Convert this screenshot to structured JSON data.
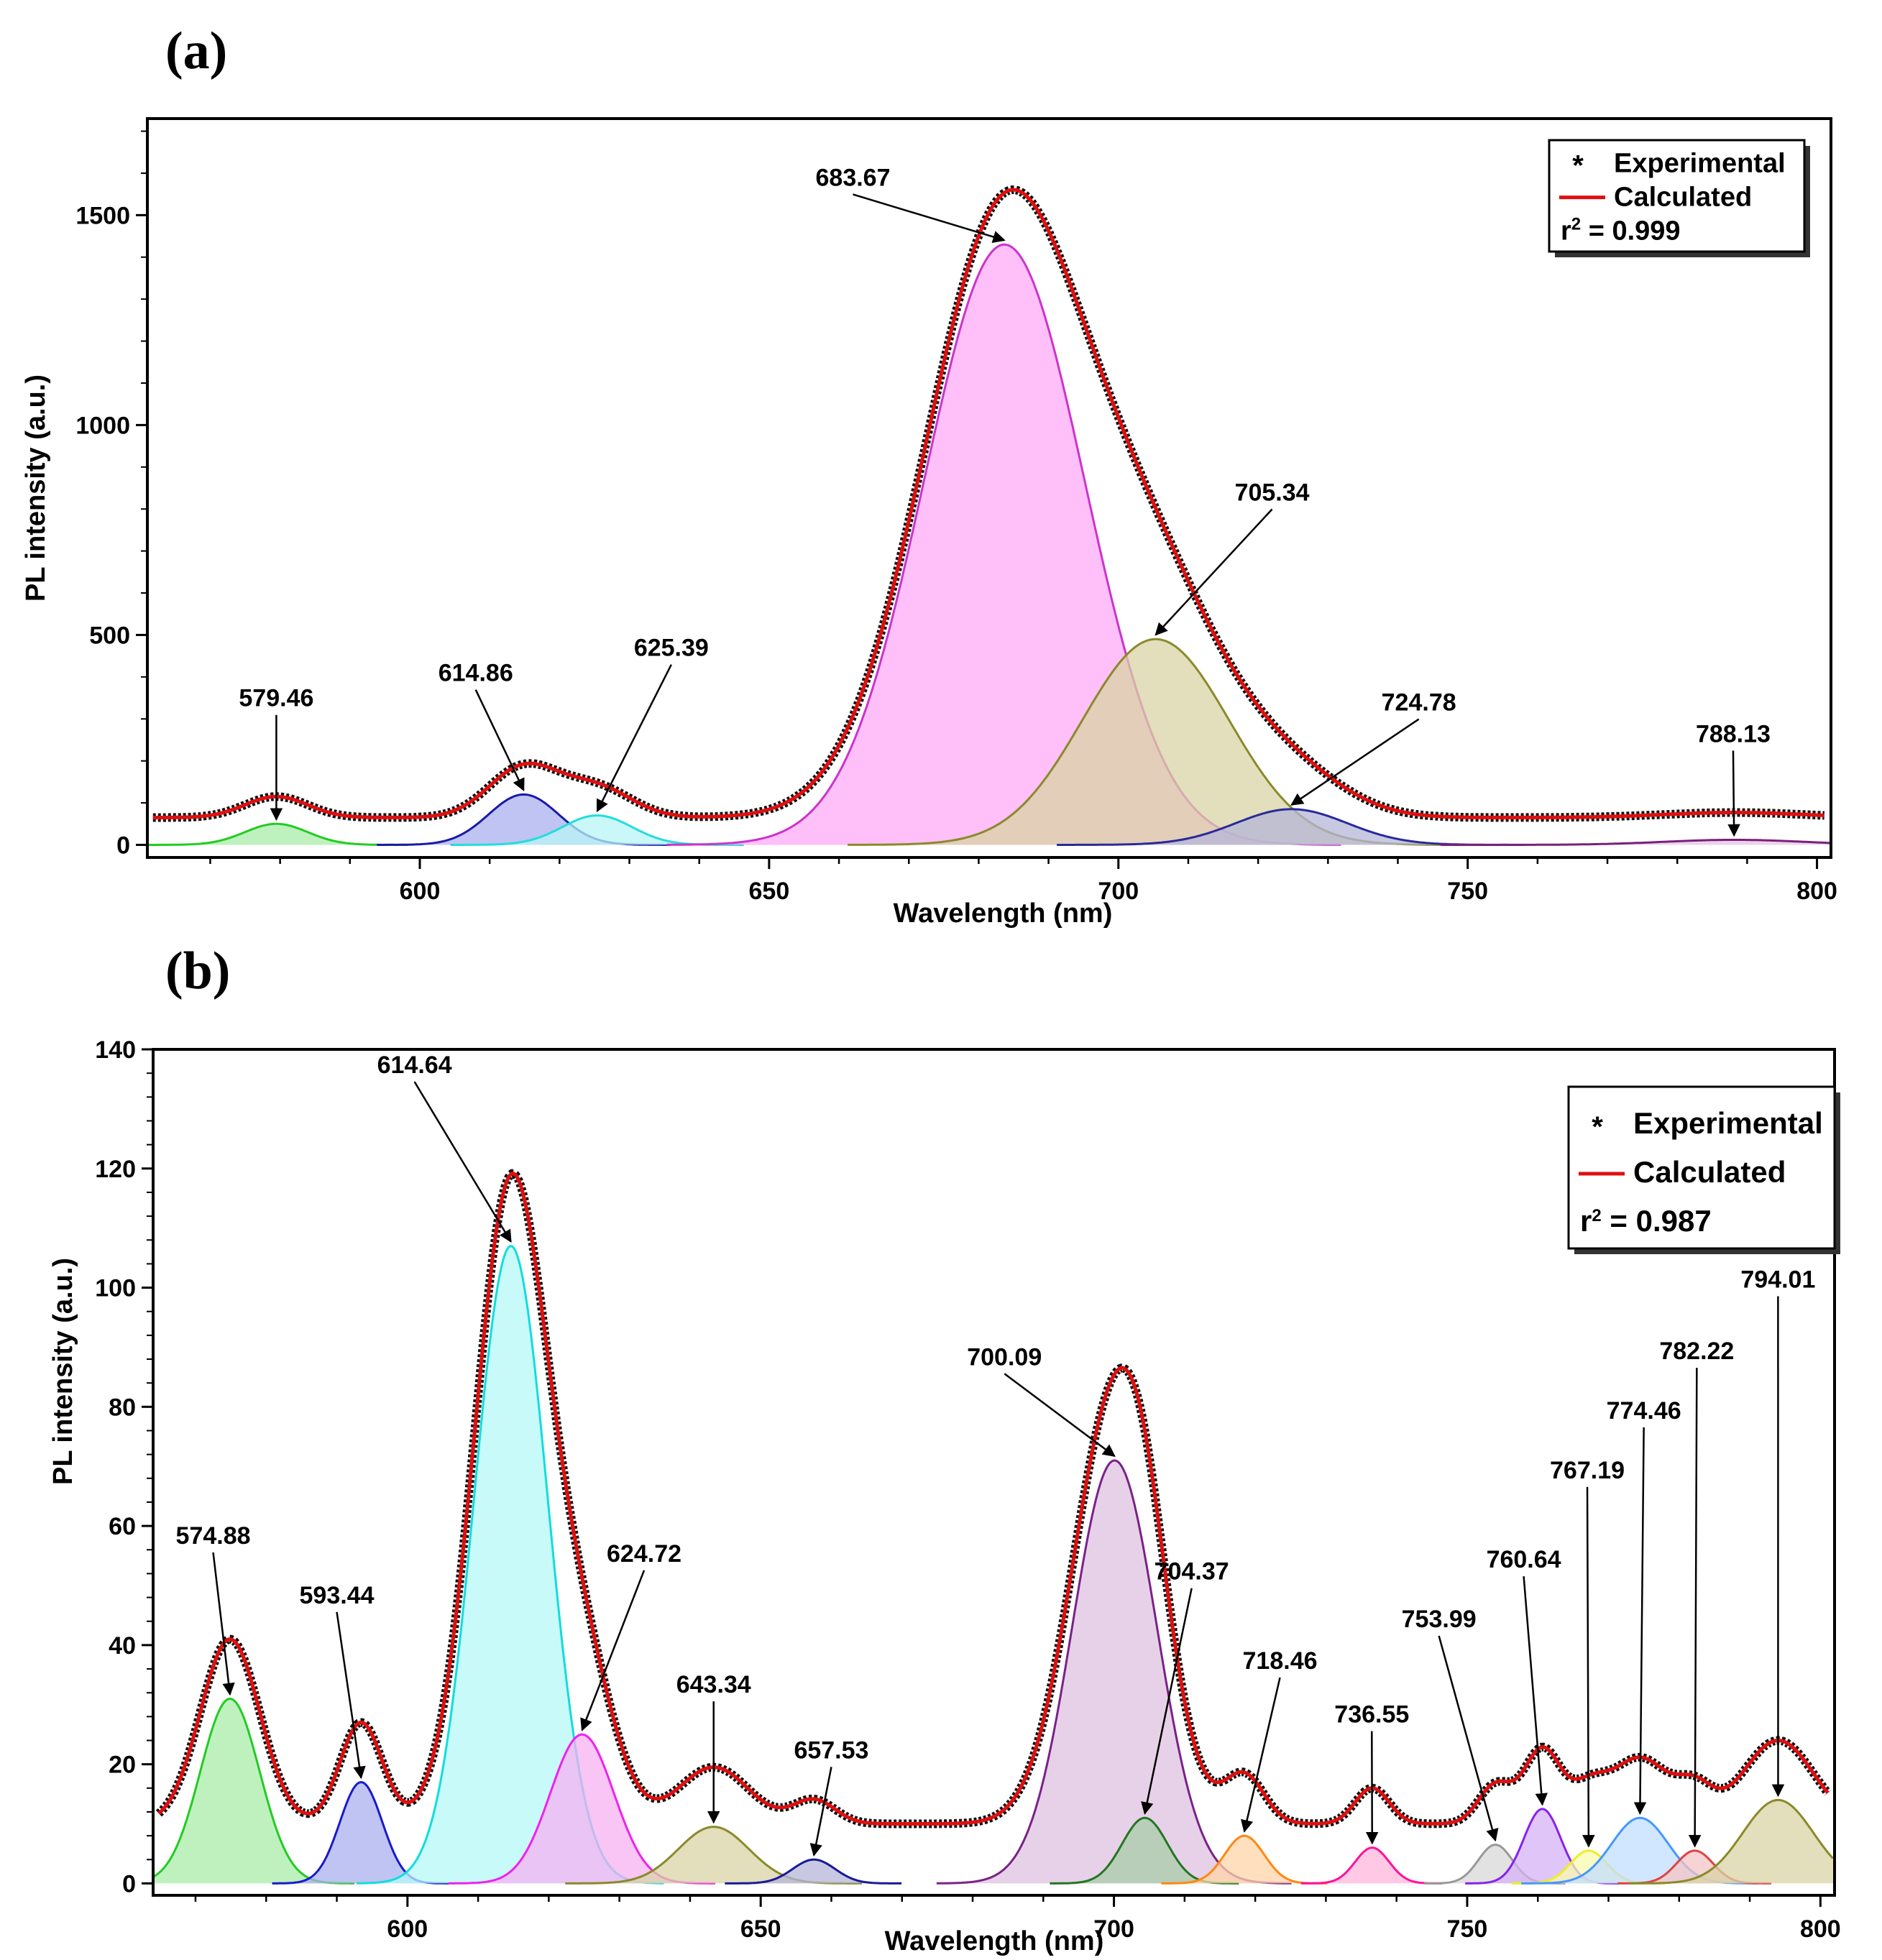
{
  "chart_data": [
    {
      "panel": "(a)",
      "type": "line",
      "xlabel": "Wavelength (nm)",
      "ylabel": "PL intensity (a.u.)",
      "xlim": [
        561,
        802
      ],
      "ylim": [
        -30,
        1730
      ],
      "xticks": [
        600,
        650,
        700,
        750,
        800
      ],
      "yticks": [
        0,
        500,
        1000,
        1500
      ],
      "legend": {
        "position": "top-right",
        "experimental": "Experimental",
        "calculated": "Calculated",
        "r2_prefix": "r",
        "r2_sup": "2",
        "r2_value": " = 0.999"
      },
      "calc_offset": 65,
      "components": [
        {
          "center": 579.46,
          "amp": 50,
          "sigma": 4.5,
          "color": "#22cc22",
          "fill": "#a8eca8",
          "label": "579.46"
        },
        {
          "center": 614.86,
          "amp": 120,
          "sigma": 5.0,
          "color": "#1a1aaa",
          "fill": "#aab0ee",
          "label": "614.86"
        },
        {
          "center": 625.39,
          "amp": 70,
          "sigma": 5.0,
          "color": "#22dddd",
          "fill": "#b8f4f4",
          "label": "625.39"
        },
        {
          "center": 683.67,
          "amp": 1430,
          "sigma": 11.5,
          "color": "#cc33cc",
          "fill": "#ffaaf5",
          "label": "683.67"
        },
        {
          "center": 705.34,
          "amp": 490,
          "sigma": 10.5,
          "color": "#8a8a2a",
          "fill": "#d9d3a6",
          "label": "705.34"
        },
        {
          "center": 724.78,
          "amp": 85,
          "sigma": 8.0,
          "color": "#2a2a9a",
          "fill": "#b6b6d8",
          "label": "724.78"
        },
        {
          "center": 788.13,
          "amp": 12,
          "sigma": 10.0,
          "color": "#7a207a",
          "fill": "#e4c6e4",
          "label": "788.13"
        }
      ],
      "annotations": [
        {
          "text": "579.46",
          "peak_x": 579.46,
          "label_x": 579.46,
          "label_y": 330
        },
        {
          "text": "614.86",
          "peak_x": 614.86,
          "label_x": 608,
          "label_y": 390
        },
        {
          "text": "625.39",
          "peak_x": 625.39,
          "label_x": 636,
          "label_y": 450
        },
        {
          "text": "683.67",
          "peak_x": 683.67,
          "label_x": 662,
          "label_y": 1570
        },
        {
          "text": "705.34",
          "peak_x": 705.34,
          "label_x": 722,
          "label_y": 820
        },
        {
          "text": "724.78",
          "peak_x": 724.78,
          "label_x": 743,
          "label_y": 320
        },
        {
          "text": "788.13",
          "peak_x": 788.13,
          "label_x": 788,
          "label_y": 245
        }
      ]
    },
    {
      "panel": "(b)",
      "type": "line",
      "xlabel": "Wavelength (nm)",
      "ylabel": "PL intensity (a.u.)",
      "xlim": [
        564,
        802
      ],
      "ylim": [
        -2,
        140
      ],
      "xticks": [
        600,
        650,
        700,
        750,
        800
      ],
      "yticks": [
        0,
        20,
        40,
        60,
        80,
        100,
        120,
        140
      ],
      "legend": {
        "position": "top-right",
        "experimental": "Experimental",
        "calculated": "Calculated",
        "r2_prefix": "r",
        "r2_sup": "2",
        "r2_value": " = 0.987"
      },
      "calc_offset": 10,
      "components": [
        {
          "center": 574.88,
          "amp": 31,
          "sigma": 4.2,
          "color": "#22cc22",
          "fill": "#a8eca8",
          "label": "574.88"
        },
        {
          "center": 593.44,
          "amp": 17,
          "sigma": 3.0,
          "color": "#1a1acc",
          "fill": "#aab0ee",
          "label": "593.44"
        },
        {
          "center": 614.64,
          "amp": 107,
          "sigma": 5.2,
          "color": "#11dddd",
          "fill": "#b5f8f8",
          "label": "614.64"
        },
        {
          "center": 624.72,
          "amp": 25,
          "sigma": 4.5,
          "color": "#ee22ee",
          "fill": "#f5b2f2",
          "label": "624.72"
        },
        {
          "center": 643.34,
          "amp": 9.5,
          "sigma": 5.0,
          "color": "#8a8a2a",
          "fill": "#d9d3a6",
          "label": "643.34"
        },
        {
          "center": 657.53,
          "amp": 4,
          "sigma": 3.0,
          "color": "#1a1a99",
          "fill": "#b6b6d8",
          "label": "657.53"
        },
        {
          "center": 700.09,
          "amp": 71,
          "sigma": 6.0,
          "color": "#7a2288",
          "fill": "#dfc2e0",
          "label": "700.09"
        },
        {
          "center": 704.37,
          "amp": 11,
          "sigma": 3.2,
          "color": "#227722",
          "fill": "#a8cca8",
          "label": "704.37"
        },
        {
          "center": 718.46,
          "amp": 8,
          "sigma": 2.8,
          "color": "#ff8811",
          "fill": "#ffd4a8",
          "label": "718.46"
        },
        {
          "center": 736.55,
          "amp": 6,
          "sigma": 2.4,
          "color": "#ff1199",
          "fill": "#ffb6dc",
          "label": "736.55"
        },
        {
          "center": 753.99,
          "amp": 6.5,
          "sigma": 2.4,
          "color": "#999999",
          "fill": "#d8d8d8",
          "label": "753.99"
        },
        {
          "center": 760.64,
          "amp": 12.5,
          "sigma": 2.6,
          "color": "#8822ee",
          "fill": "#d6b2f6",
          "label": "760.64"
        },
        {
          "center": 767.19,
          "amp": 5.5,
          "sigma": 2.6,
          "color": "#eeee22",
          "fill": "#fafab0",
          "label": "767.19"
        },
        {
          "center": 774.46,
          "amp": 11,
          "sigma": 4.0,
          "color": "#4499ff",
          "fill": "#c2ddff",
          "label": "774.46"
        },
        {
          "center": 782.22,
          "amp": 5.5,
          "sigma": 2.6,
          "color": "#dd4444",
          "fill": "#f4c4c4",
          "label": "782.22"
        },
        {
          "center": 794.01,
          "amp": 14,
          "sigma": 5.0,
          "color": "#8a8a2a",
          "fill": "#d9d3a6",
          "label": "794.01"
        }
      ],
      "annotations": [
        {
          "text": "574.88",
          "peak_x": 574.88,
          "label_x": 572.5,
          "label_y": 57
        },
        {
          "text": "593.44",
          "peak_x": 593.44,
          "label_x": 590,
          "label_y": 47
        },
        {
          "text": "614.64",
          "peak_x": 614.64,
          "label_x": 601,
          "label_y": 136
        },
        {
          "text": "624.72",
          "peak_x": 624.72,
          "label_x": 633.5,
          "label_y": 54
        },
        {
          "text": "643.34",
          "peak_x": 643.34,
          "label_x": 643.34,
          "label_y": 32
        },
        {
          "text": "657.53",
          "peak_x": 657.53,
          "label_x": 660,
          "label_y": 21
        },
        {
          "text": "700.09",
          "peak_x": 700.09,
          "label_x": 684.5,
          "label_y": 87
        },
        {
          "text": "704.37",
          "peak_x": 704.37,
          "label_x": 711,
          "label_y": 51
        },
        {
          "text": "718.46",
          "peak_x": 718.46,
          "label_x": 723.5,
          "label_y": 36
        },
        {
          "text": "736.55",
          "peak_x": 736.55,
          "label_x": 736.5,
          "label_y": 27
        },
        {
          "text": "753.99",
          "peak_x": 753.99,
          "label_x": 746,
          "label_y": 43
        },
        {
          "text": "760.64",
          "peak_x": 760.64,
          "label_x": 758,
          "label_y": 53
        },
        {
          "text": "767.19",
          "peak_x": 767.19,
          "label_x": 767,
          "label_y": 68
        },
        {
          "text": "774.46",
          "peak_x": 774.46,
          "label_x": 775,
          "label_y": 78
        },
        {
          "text": "782.22",
          "peak_x": 782.22,
          "label_x": 782.5,
          "label_y": 88
        },
        {
          "text": "794.01",
          "peak_x": 794.01,
          "label_x": 794,
          "label_y": 100
        }
      ]
    }
  ]
}
